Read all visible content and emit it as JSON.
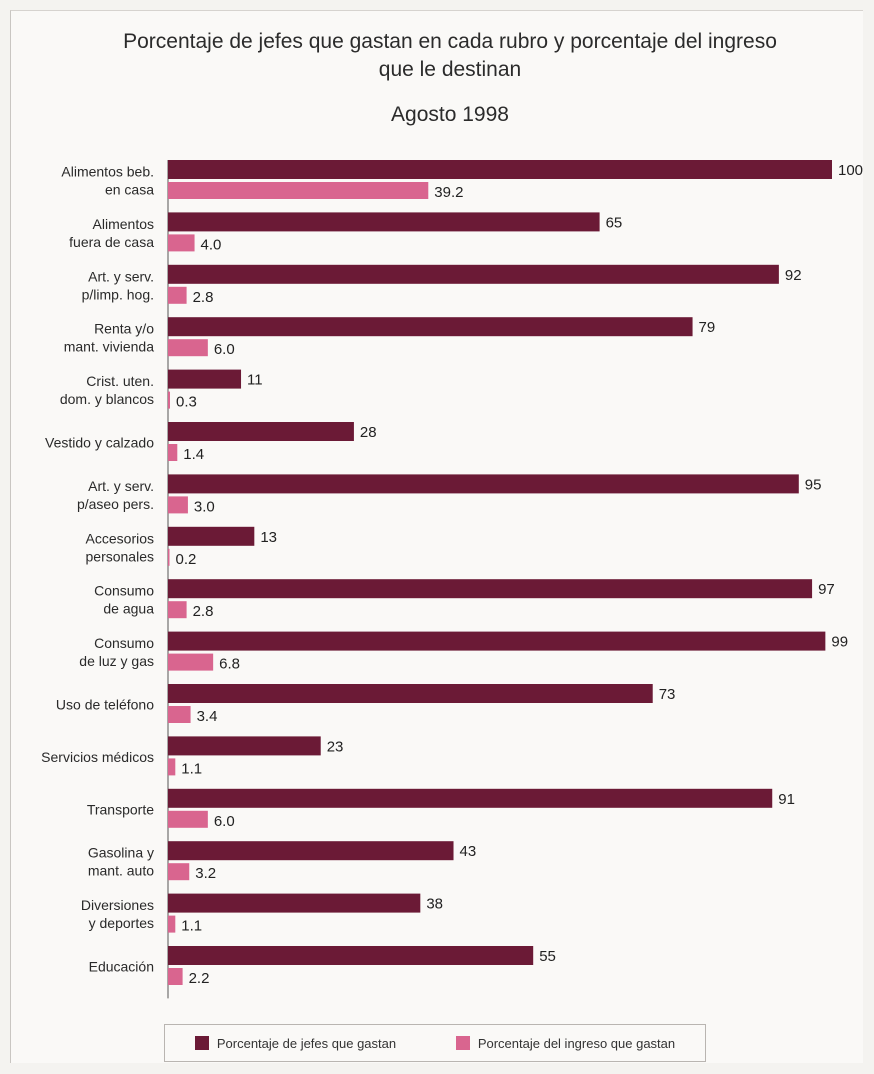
{
  "chart_data": {
    "type": "bar",
    "title_line1": "Porcentaje de jefes que gastan en cada rubro y porcentaje del ingreso",
    "title_line2": "que le destinan",
    "subtitle": "Agosto 1998",
    "orientation": "horizontal",
    "categories": [
      [
        "Alimentos beb.",
        "en casa"
      ],
      [
        "Alimentos",
        "fuera de casa"
      ],
      [
        "Art. y serv.",
        "p/limp. hog."
      ],
      [
        "Renta y/o",
        "mant. vivienda"
      ],
      [
        "Crist. uten.",
        "dom. y blancos"
      ],
      [
        "Vestido y calzado"
      ],
      [
        "Art. y serv.",
        "p/aseo pers."
      ],
      [
        "Accesorios",
        "personales"
      ],
      [
        "Consumo",
        "de agua"
      ],
      [
        "Consumo",
        "de luz y gas"
      ],
      [
        "Uso de teléfono"
      ],
      [
        "Servicios médicos"
      ],
      [
        "Transporte"
      ],
      [
        "Gasolina y",
        "mant. auto"
      ],
      [
        "Diversiones",
        "y deportes"
      ],
      [
        "Educación"
      ]
    ],
    "series": [
      {
        "name": "Porcentaje de jefes que gastan",
        "color": "#6b1a36",
        "values": [
          100,
          65,
          92,
          79,
          11,
          28,
          95,
          13,
          97,
          99,
          73,
          23,
          91,
          43,
          38,
          55
        ],
        "labels": [
          "100",
          "65",
          "92",
          "79",
          "11",
          "28",
          "95",
          "13",
          "97",
          "99",
          "73",
          "23",
          "91",
          "43",
          "38",
          "55"
        ]
      },
      {
        "name": "Porcentaje del ingreso que gastan",
        "color": "#d9658f",
        "values": [
          39.2,
          4.0,
          2.8,
          6.0,
          0.3,
          1.4,
          3.0,
          0.2,
          2.8,
          6.8,
          3.4,
          1.1,
          6.0,
          3.2,
          1.1,
          2.2
        ],
        "labels": [
          "39.2",
          "4.0",
          "2.8",
          "6.0",
          "0.3",
          "1.4",
          "3.0",
          "0.2",
          "2.8",
          "6.8",
          "3.4",
          "1.1",
          "6.0",
          "3.2",
          "1.1",
          "2.2"
        ]
      }
    ],
    "xlim": [
      0,
      100
    ],
    "legend_position": "bottom",
    "grid": false
  }
}
